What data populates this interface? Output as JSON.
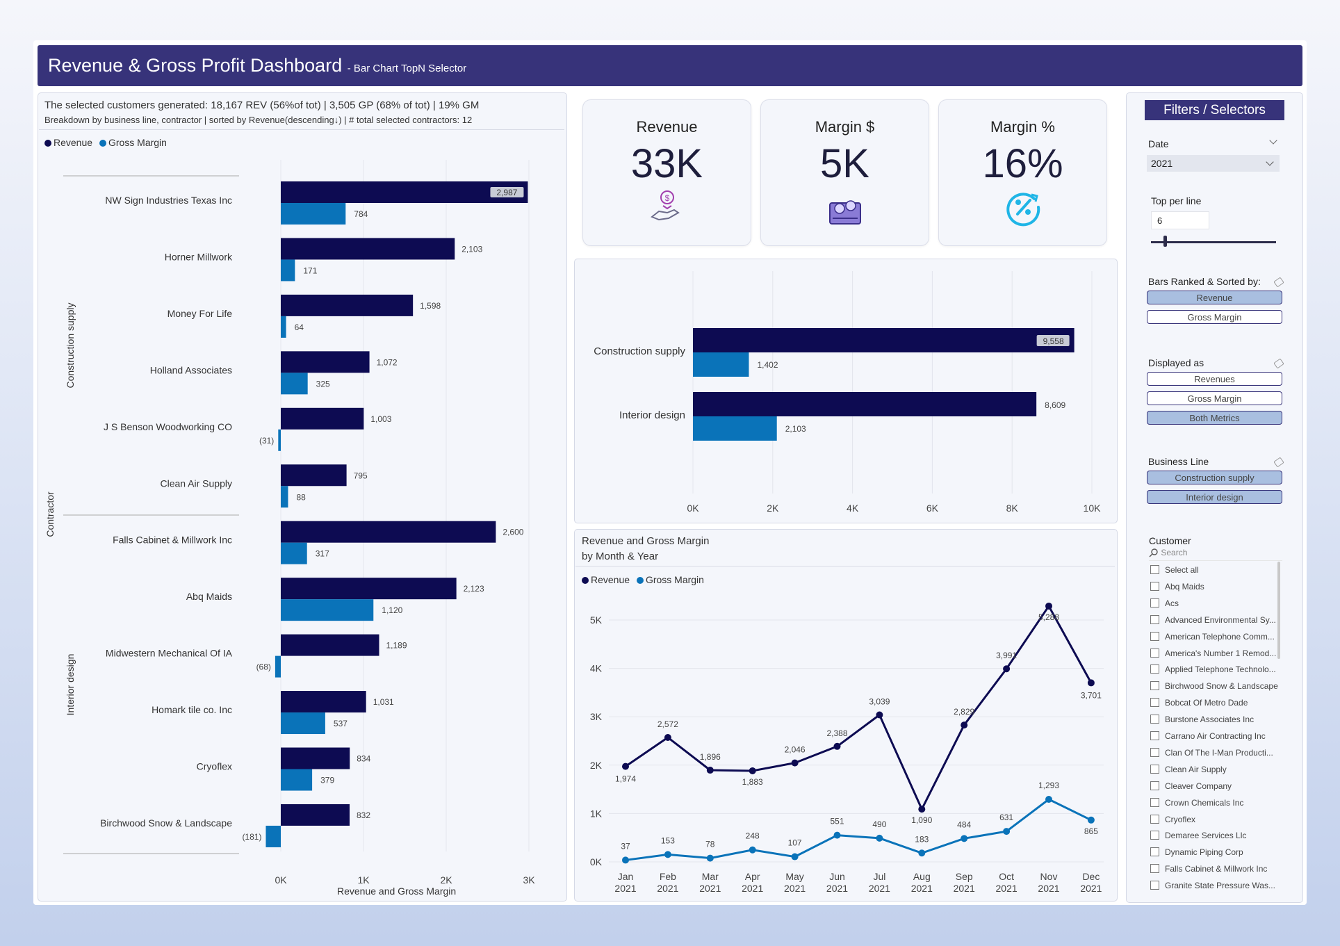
{
  "header": {
    "title": "Revenue & Gross Profit Dashboard",
    "subtitle": "- Bar Chart TopN Selector"
  },
  "summary": {
    "line1": "The selected customers generated: 18,167 REV (56%of tot) | 3,505 GP (68% of tot) | 19% GM",
    "line2": "Breakdown by business line, contractor | sorted by Revenue(descending↓) | # total selected contractors: 12"
  },
  "legend": {
    "revenue": "Revenue",
    "gross_margin": "Gross Margin"
  },
  "colors": {
    "revenue": "#0d0b52",
    "gross_margin": "#0a73b9",
    "header": "#37337a",
    "selected": "#a9bfe0"
  },
  "kpis": [
    {
      "title": "Revenue",
      "value": "33K",
      "icon": "money-hand-icon"
    },
    {
      "title": "Margin $",
      "value": "5K",
      "icon": "coin-stacks-icon"
    },
    {
      "title": "Margin %",
      "value": "16%",
      "icon": "percent-circle-icon"
    }
  ],
  "chart_data": [
    {
      "type": "bar",
      "orientation": "horizontal",
      "xlabel": "Revenue and Gross Margin",
      "group_axis_label": "Contractor",
      "groups": [
        "Construction supply",
        "Interior design"
      ],
      "xticks": [
        "0K",
        "1K",
        "2K",
        "3K"
      ],
      "xlim": [
        0,
        3000
      ],
      "categories": [
        {
          "group": "Construction supply",
          "name": "NW Sign Industries Texas Inc",
          "revenue": 2987,
          "gross_margin": 784,
          "rev_label": "2,987",
          "gm_label": "784"
        },
        {
          "group": "Construction supply",
          "name": "Horner Millwork",
          "revenue": 2103,
          "gross_margin": 171,
          "rev_label": "2,103",
          "gm_label": "171"
        },
        {
          "group": "Construction supply",
          "name": "Money For Life",
          "revenue": 1598,
          "gross_margin": 64,
          "rev_label": "1,598",
          "gm_label": "64"
        },
        {
          "group": "Construction supply",
          "name": "Holland Associates",
          "revenue": 1072,
          "gross_margin": 325,
          "rev_label": "1,072",
          "gm_label": "325"
        },
        {
          "group": "Construction supply",
          "name": "J S Benson Woodworking CO",
          "revenue": 1003,
          "gross_margin": -31,
          "rev_label": "1,003",
          "gm_label": "(31)"
        },
        {
          "group": "Construction supply",
          "name": "Clean Air Supply",
          "revenue": 795,
          "gross_margin": 88,
          "rev_label": "795",
          "gm_label": "88"
        },
        {
          "group": "Interior design",
          "name": "Falls Cabinet & Millwork Inc",
          "revenue": 2600,
          "gross_margin": 317,
          "rev_label": "2,600",
          "gm_label": "317"
        },
        {
          "group": "Interior design",
          "name": "Abq Maids",
          "revenue": 2123,
          "gross_margin": 1120,
          "rev_label": "2,123",
          "gm_label": "1,120"
        },
        {
          "group": "Interior design",
          "name": "Midwestern Mechanical Of IA",
          "revenue": 1189,
          "gross_margin": -68,
          "rev_label": "1,189",
          "gm_label": "(68)"
        },
        {
          "group": "Interior design",
          "name": "Homark tile co. Inc",
          "revenue": 1031,
          "gross_margin": 537,
          "rev_label": "1,031",
          "gm_label": "537"
        },
        {
          "group": "Interior design",
          "name": "Cryoflex",
          "revenue": 834,
          "gross_margin": 379,
          "rev_label": "834",
          "gm_label": "379"
        },
        {
          "group": "Interior design",
          "name": "Birchwood Snow & Landscape",
          "revenue": 832,
          "gross_margin": -181,
          "rev_label": "832",
          "gm_label": "(181)"
        }
      ]
    },
    {
      "type": "bar",
      "orientation": "horizontal",
      "categories": [
        "Construction supply",
        "Interior design"
      ],
      "series": [
        {
          "name": "Revenue",
          "values": [
            9558,
            8609
          ],
          "labels": [
            "9,558",
            "8,609"
          ]
        },
        {
          "name": "Gross Margin",
          "values": [
            1402,
            2103
          ],
          "labels": [
            "1,402",
            "2,103"
          ]
        }
      ],
      "xticks": [
        "0K",
        "2K",
        "4K",
        "6K",
        "8K",
        "10K"
      ],
      "xlim": [
        0,
        10000
      ]
    },
    {
      "type": "line",
      "title": "Revenue and Gross Margin",
      "subtitle": "by Month & Year",
      "x": [
        "Jan 2021",
        "Feb 2021",
        "Mar 2021",
        "Apr 2021",
        "May 2021",
        "Jun 2021",
        "Jul 2021",
        "Aug 2021",
        "Sep 2021",
        "Oct 2021",
        "Nov 2021",
        "Dec 2021"
      ],
      "xticks": [
        [
          "Jan",
          "2021"
        ],
        [
          "Feb",
          "2021"
        ],
        [
          "Mar",
          "2021"
        ],
        [
          "Apr",
          "2021"
        ],
        [
          "May",
          "2021"
        ],
        [
          "Jun",
          "2021"
        ],
        [
          "Jul",
          "2021"
        ],
        [
          "Aug",
          "2021"
        ],
        [
          "Sep",
          "2021"
        ],
        [
          "Oct",
          "2021"
        ],
        [
          "Nov",
          "2021"
        ],
        [
          "Dec",
          "2021"
        ]
      ],
      "yticks": [
        "0K",
        "1K",
        "2K",
        "3K",
        "4K",
        "5K"
      ],
      "ylim": [
        0,
        5000
      ],
      "series": [
        {
          "name": "Revenue",
          "values": [
            1974,
            2572,
            1896,
            1883,
            2046,
            2388,
            3039,
            1090,
            2829,
            3991,
            5288,
            3701
          ],
          "labels": [
            "1,974",
            "2,572",
            "1,896",
            "1,883",
            "2,046",
            "2,388",
            "3,039",
            "1,090",
            "2,829",
            "3,991",
            "5,288",
            "3,701"
          ]
        },
        {
          "name": "Gross Margin",
          "values": [
            37,
            153,
            78,
            248,
            107,
            551,
            490,
            183,
            484,
            631,
            1293,
            865
          ],
          "labels": [
            "37",
            "153",
            "78",
            "248",
            "107",
            "551",
            "490",
            "183",
            "484",
            "631",
            "1,293",
            "865"
          ]
        }
      ]
    }
  ],
  "filters": {
    "title": "Filters / Selectors",
    "date": {
      "label": "Date",
      "value": "2021"
    },
    "top_per_line": {
      "label": "Top per line",
      "value": "6",
      "slider_fraction": 0.1
    },
    "ranked_by": {
      "label": "Bars Ranked & Sorted by:",
      "options": [
        "Revenue",
        "Gross Margin"
      ],
      "selected": "Revenue"
    },
    "displayed_as": {
      "label": "Displayed as",
      "options": [
        "Revenues",
        "Gross Margin",
        "Both Metrics"
      ],
      "selected": "Both Metrics"
    },
    "business_line": {
      "label": "Business Line",
      "options": [
        "Construction supply",
        "Interior design"
      ]
    },
    "customer": {
      "label": "Customer",
      "search_placeholder": "Search",
      "items": [
        "Select all",
        "Abq Maids",
        "Acs",
        "Advanced Environmental Sy...",
        "American Telephone Comm...",
        "America's Number 1 Remod...",
        "Applied Telephone Technolo...",
        "Birchwood Snow & Landscape",
        "Bobcat Of Metro Dade",
        "Burstone Associates Inc",
        "Carrano Air Contracting Inc",
        "Clan Of The I-Man Producti...",
        "Clean Air Supply",
        "Cleaver Company",
        "Crown Chemicals Inc",
        "Cryoflex",
        "Demaree Services Llc",
        "Dynamic Piping Corp",
        "Falls Cabinet & Millwork Inc",
        "Granite State Pressure Was..."
      ]
    }
  }
}
